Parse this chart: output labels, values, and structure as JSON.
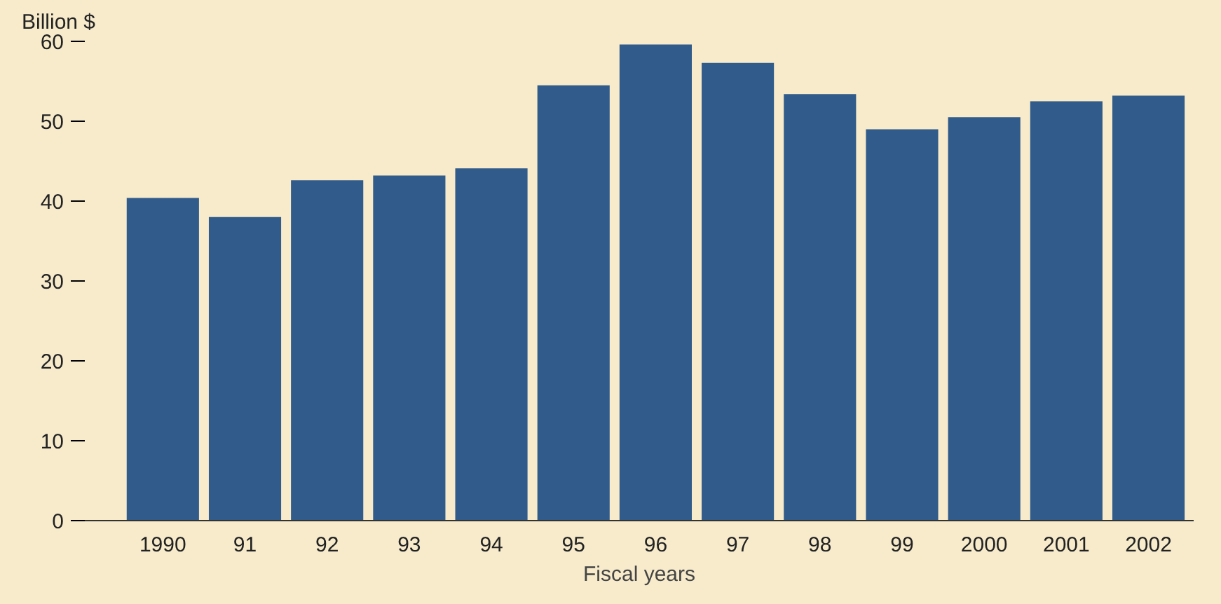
{
  "chart_data": {
    "type": "bar",
    "ylabel": "Billion $",
    "xlabel": "Fiscal years",
    "categories": [
      "1990",
      "91",
      "92",
      "93",
      "94",
      "95",
      "96",
      "97",
      "98",
      "99",
      "2000",
      "2001",
      "2002"
    ],
    "values": [
      40.4,
      38.0,
      42.6,
      43.2,
      44.1,
      54.5,
      59.6,
      57.3,
      53.4,
      49.0,
      50.5,
      52.5,
      53.2
    ],
    "color": "#315b8a",
    "ylim": [
      0,
      60
    ],
    "yticks": [
      0,
      10,
      20,
      30,
      40,
      50,
      60
    ],
    "grid": false
  }
}
